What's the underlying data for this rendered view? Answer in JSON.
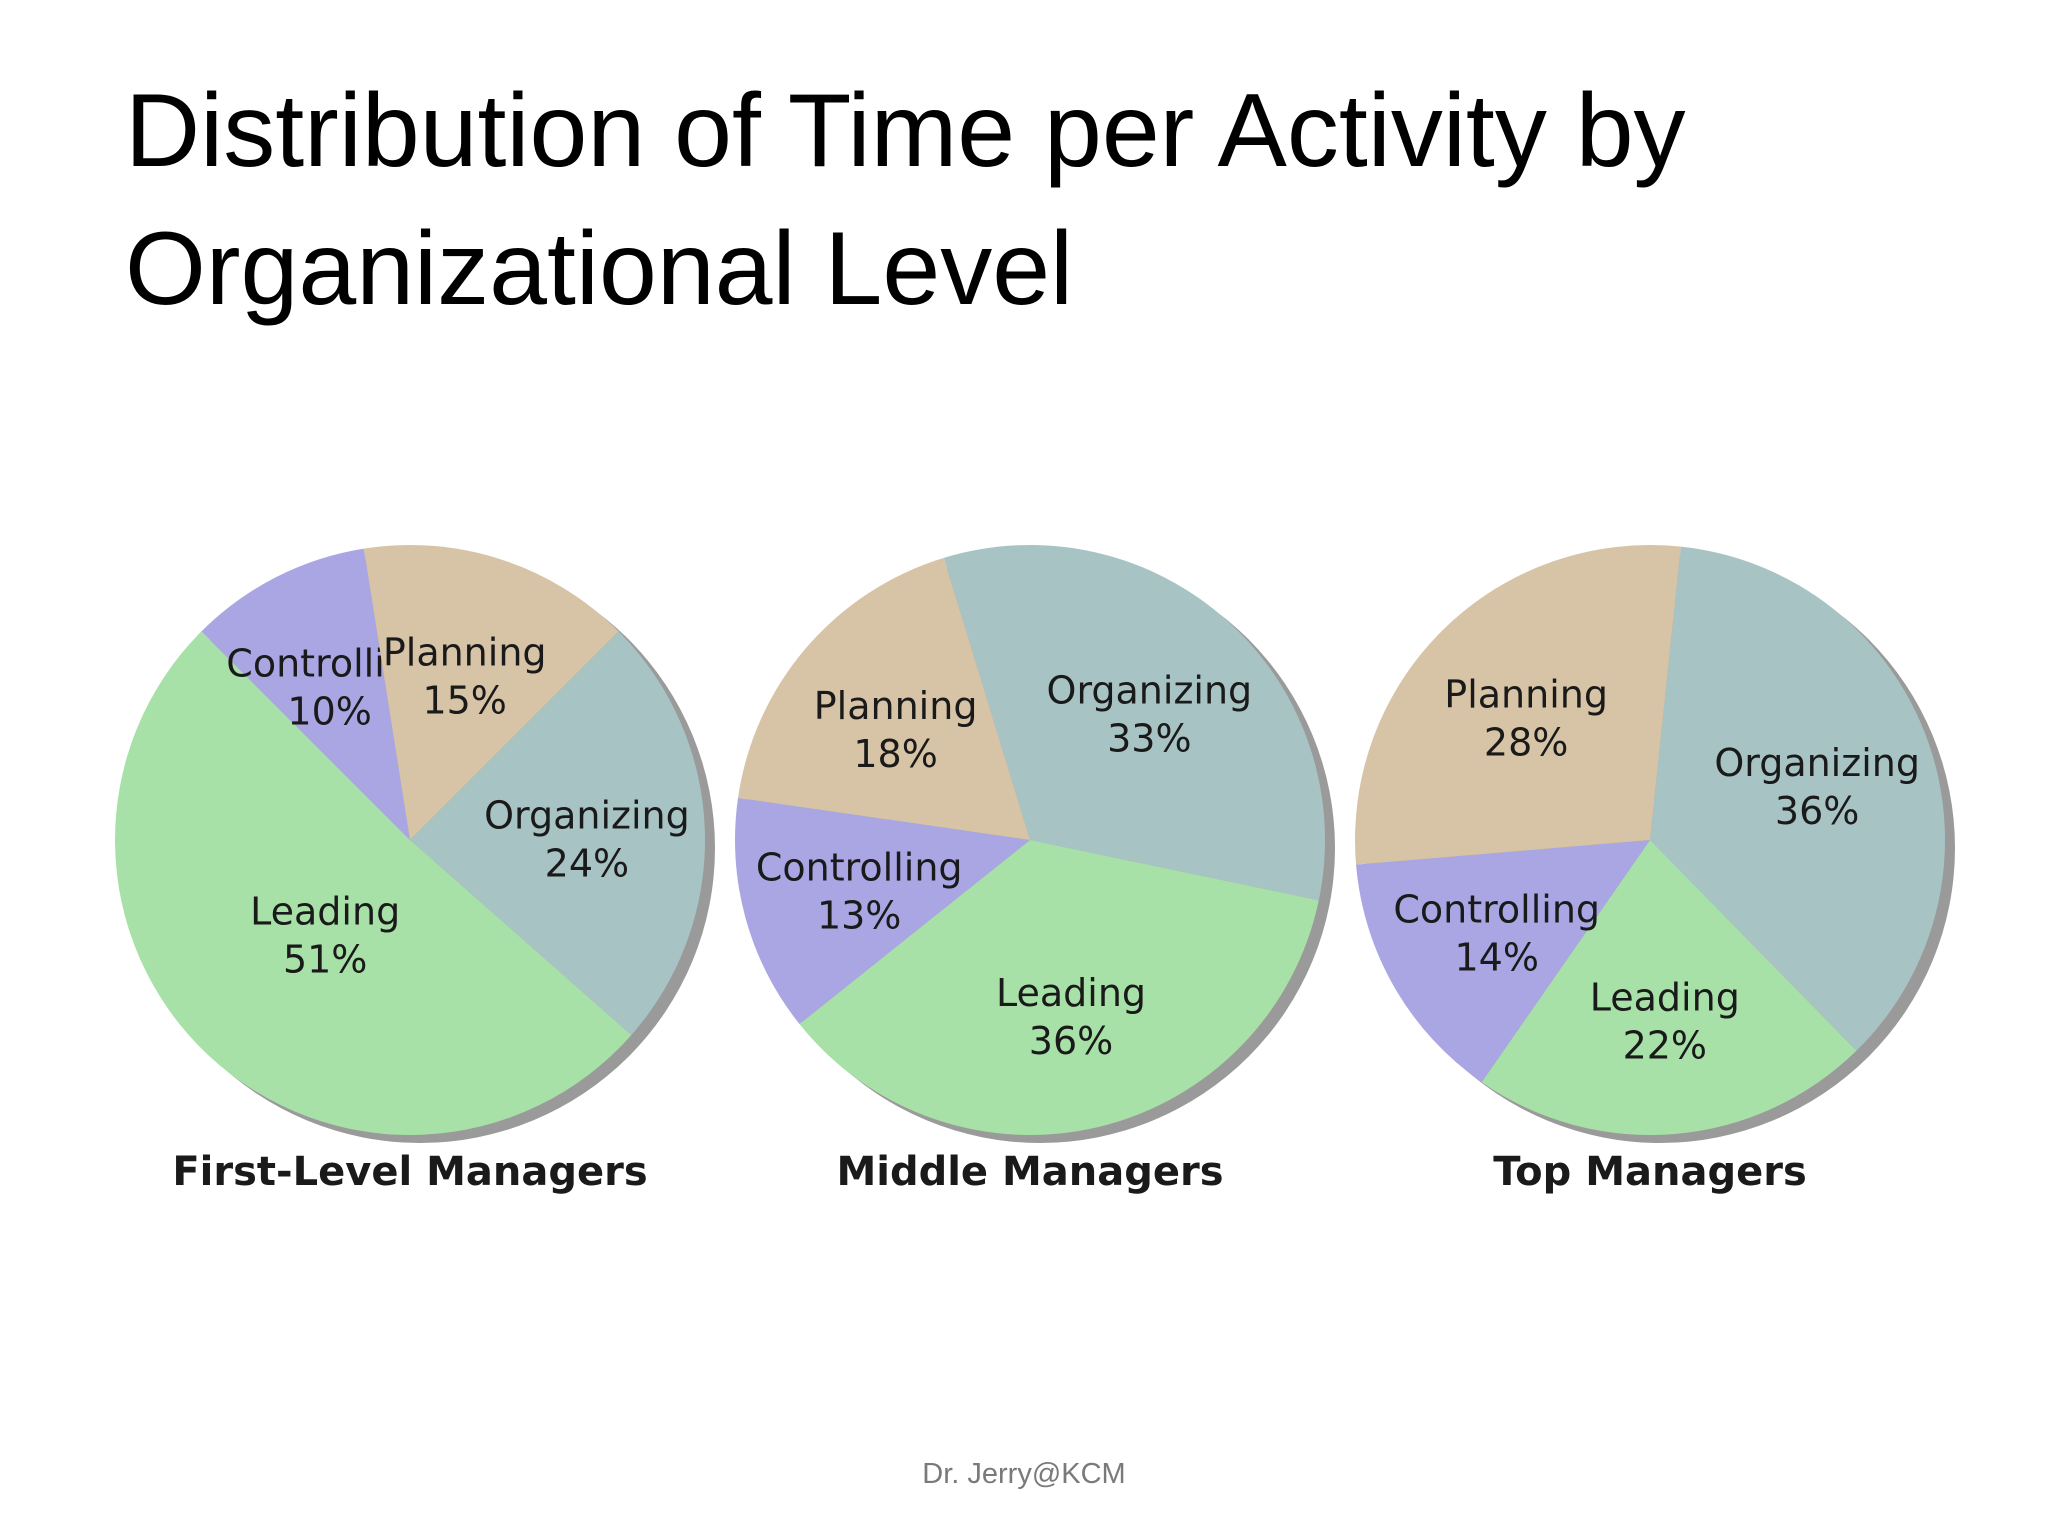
{
  "slide": {
    "title": "Distribution of Time per Activity by Organizational Level",
    "footer": "Dr. Jerry@KCM"
  },
  "colors": {
    "Planning": "#d7c4a6",
    "Organizing": "#a8c3c4",
    "Leading": "#a8e1a8",
    "Controlling": "#a9a6e3",
    "shadow": "#9a9a9a"
  },
  "chart_data": [
    {
      "type": "pie",
      "title": "First-Level Managers",
      "slices": [
        {
          "label": "Organizing",
          "value": 24,
          "value_label": "24%"
        },
        {
          "label": "Leading",
          "value": 51,
          "value_label": "51%"
        },
        {
          "label": "Controlling",
          "value": 10,
          "value_label": "10%"
        },
        {
          "label": "Planning",
          "value": 15,
          "value_label": "15%"
        }
      ]
    },
    {
      "type": "pie",
      "title": "Middle Managers",
      "slices": [
        {
          "label": "Organizing",
          "value": 33,
          "value_label": "33%"
        },
        {
          "label": "Leading",
          "value": 36,
          "value_label": "36%"
        },
        {
          "label": "Controlling",
          "value": 13,
          "value_label": "13%"
        },
        {
          "label": "Planning",
          "value": 18,
          "value_label": "18%"
        }
      ]
    },
    {
      "type": "pie",
      "title": "Top Managers",
      "slices": [
        {
          "label": "Organizing",
          "value": 36,
          "value_label": "36%"
        },
        {
          "label": "Leading",
          "value": 22,
          "value_label": "22%"
        },
        {
          "label": "Controlling",
          "value": 14,
          "value_label": "14%"
        },
        {
          "label": "Planning",
          "value": 28,
          "value_label": "28%"
        }
      ]
    }
  ]
}
